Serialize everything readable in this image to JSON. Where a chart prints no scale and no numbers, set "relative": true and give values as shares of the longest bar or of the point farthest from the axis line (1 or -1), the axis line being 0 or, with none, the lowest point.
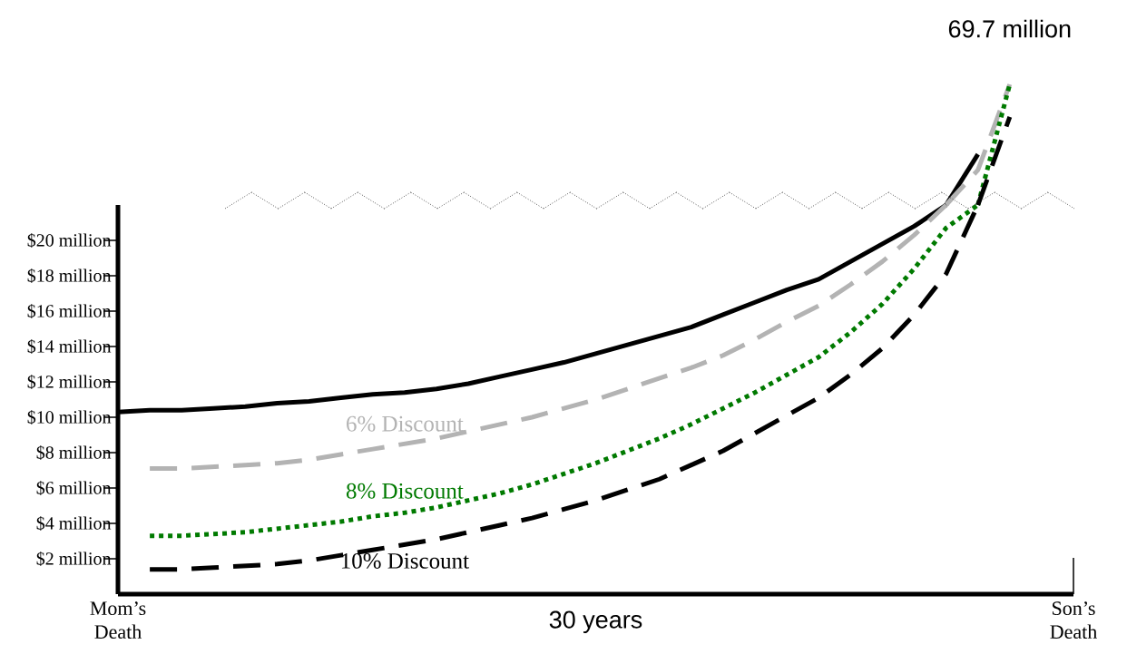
{
  "chart_data": [
    {
      "type": "line",
      "relative": true,
      "categories": [
        null,
        null,
        null,
        null,
        null,
        null,
        null,
        null,
        null,
        null,
        null,
        null,
        null,
        null,
        null,
        null,
        null,
        null,
        null,
        null,
        null,
        null,
        null,
        null,
        null,
        null,
        null,
        null,
        null,
        null,
        null
      ],
      "annotations": [
        "69.7 million"
      ],
      "series": [
        {
          "color": "#000000",
          "line_style": "solid",
          "values": [
            null,
            null,
            null,
            null,
            null,
            null,
            null,
            null,
            null,
            null,
            null,
            null,
            null,
            null,
            null,
            null,
            null,
            null,
            null,
            null,
            null,
            null,
            null,
            null,
            null,
            null,
            0,
            0.42,
            null,
            null,
            null
          ]
        },
        {
          "color": "#b3b3b3",
          "line_style": "dashed",
          "values": [
            null,
            null,
            null,
            null,
            null,
            null,
            null,
            null,
            null,
            null,
            null,
            null,
            null,
            null,
            null,
            null,
            null,
            null,
            null,
            null,
            null,
            null,
            null,
            null,
            null,
            null,
            0,
            0.29,
            1,
            null,
            null
          ]
        },
        {
          "color": "#007a00",
          "line_style": "dotted",
          "values": [
            null,
            null,
            null,
            null,
            null,
            null,
            null,
            null,
            null,
            null,
            null,
            null,
            null,
            null,
            null,
            null,
            null,
            null,
            null,
            null,
            null,
            null,
            null,
            null,
            null,
            null,
            null,
            0,
            1,
            null,
            null
          ]
        },
        {
          "color": "#000000",
          "line_style": "dashed",
          "values": [
            null,
            null,
            null,
            null,
            null,
            null,
            null,
            null,
            null,
            null,
            null,
            null,
            null,
            null,
            null,
            null,
            null,
            null,
            null,
            null,
            null,
            null,
            null,
            null,
            null,
            null,
            null,
            0,
            0.73,
            null,
            null
          ]
        }
      ]
    },
    {
      "type": "line",
      "ylim": [
        0,
        22
      ],
      "xlabel": "30 years",
      "categories": [
        "Mom’s Death",
        null,
        null,
        null,
        null,
        null,
        null,
        null,
        null,
        null,
        null,
        null,
        null,
        null,
        null,
        null,
        null,
        null,
        null,
        null,
        null,
        null,
        null,
        null,
        null,
        null,
        null,
        null,
        null,
        null,
        "Son’s Death"
      ],
      "yticks": [
        {
          "value": 2,
          "label": "$2 million"
        },
        {
          "value": 4,
          "label": "$4 million"
        },
        {
          "value": 6,
          "label": "$6 million"
        },
        {
          "value": 8,
          "label": "$8 million"
        },
        {
          "value": 10,
          "label": "$10 million"
        },
        {
          "value": 12,
          "label": "$12 million"
        },
        {
          "value": 14,
          "label": "$14 million"
        },
        {
          "value": 16,
          "label": "$16 million"
        },
        {
          "value": 18,
          "label": "$18 million"
        },
        {
          "value": 20,
          "label": "$20 million"
        }
      ],
      "series": [
        {
          "color": "#000000",
          "line_style": "solid",
          "values": [
            10.3,
            10.4,
            10.4,
            10.5,
            10.6,
            10.8,
            10.9,
            11.1,
            11.3,
            11.4,
            11.6,
            11.9,
            12.3,
            12.7,
            13.1,
            13.6,
            14.1,
            14.6,
            15.1,
            15.8,
            16.5,
            17.2,
            17.8,
            18.8,
            19.8,
            20.8,
            22,
            null,
            null,
            null,
            null
          ]
        },
        {
          "name": "6% Discount",
          "color": "#b3b3b3",
          "line_style": "dashed",
          "values": [
            null,
            7.1,
            7.1,
            7.2,
            7.3,
            7.4,
            7.6,
            7.9,
            8.2,
            8.5,
            8.8,
            9.2,
            9.6,
            10.0,
            10.5,
            11.0,
            11.6,
            12.2,
            12.8,
            13.5,
            14.4,
            15.4,
            16.3,
            17.5,
            18.8,
            20.3,
            22,
            null,
            null,
            null,
            null
          ]
        },
        {
          "name": "8% Discount",
          "color": "#007a00",
          "line_style": "dotted",
          "values": [
            null,
            3.3,
            3.3,
            3.4,
            3.5,
            3.7,
            3.9,
            4.1,
            4.4,
            4.6,
            4.9,
            5.3,
            5.7,
            6.2,
            6.8,
            7.4,
            8.1,
            8.8,
            9.6,
            10.5,
            11.4,
            12.4,
            13.4,
            14.8,
            16.4,
            18.4,
            20.7,
            22,
            null,
            null,
            null
          ]
        },
        {
          "name": "10% Discount",
          "color": "#000000",
          "line_style": "dashed",
          "values": [
            null,
            1.4,
            1.4,
            1.5,
            1.6,
            1.7,
            1.9,
            2.2,
            2.5,
            2.8,
            3.1,
            3.5,
            3.9,
            4.3,
            4.8,
            5.3,
            5.9,
            6.5,
            7.3,
            8.1,
            9.1,
            10.1,
            11.1,
            12.4,
            13.9,
            15.8,
            18.1,
            22,
            null,
            null,
            null
          ]
        }
      ]
    }
  ]
}
